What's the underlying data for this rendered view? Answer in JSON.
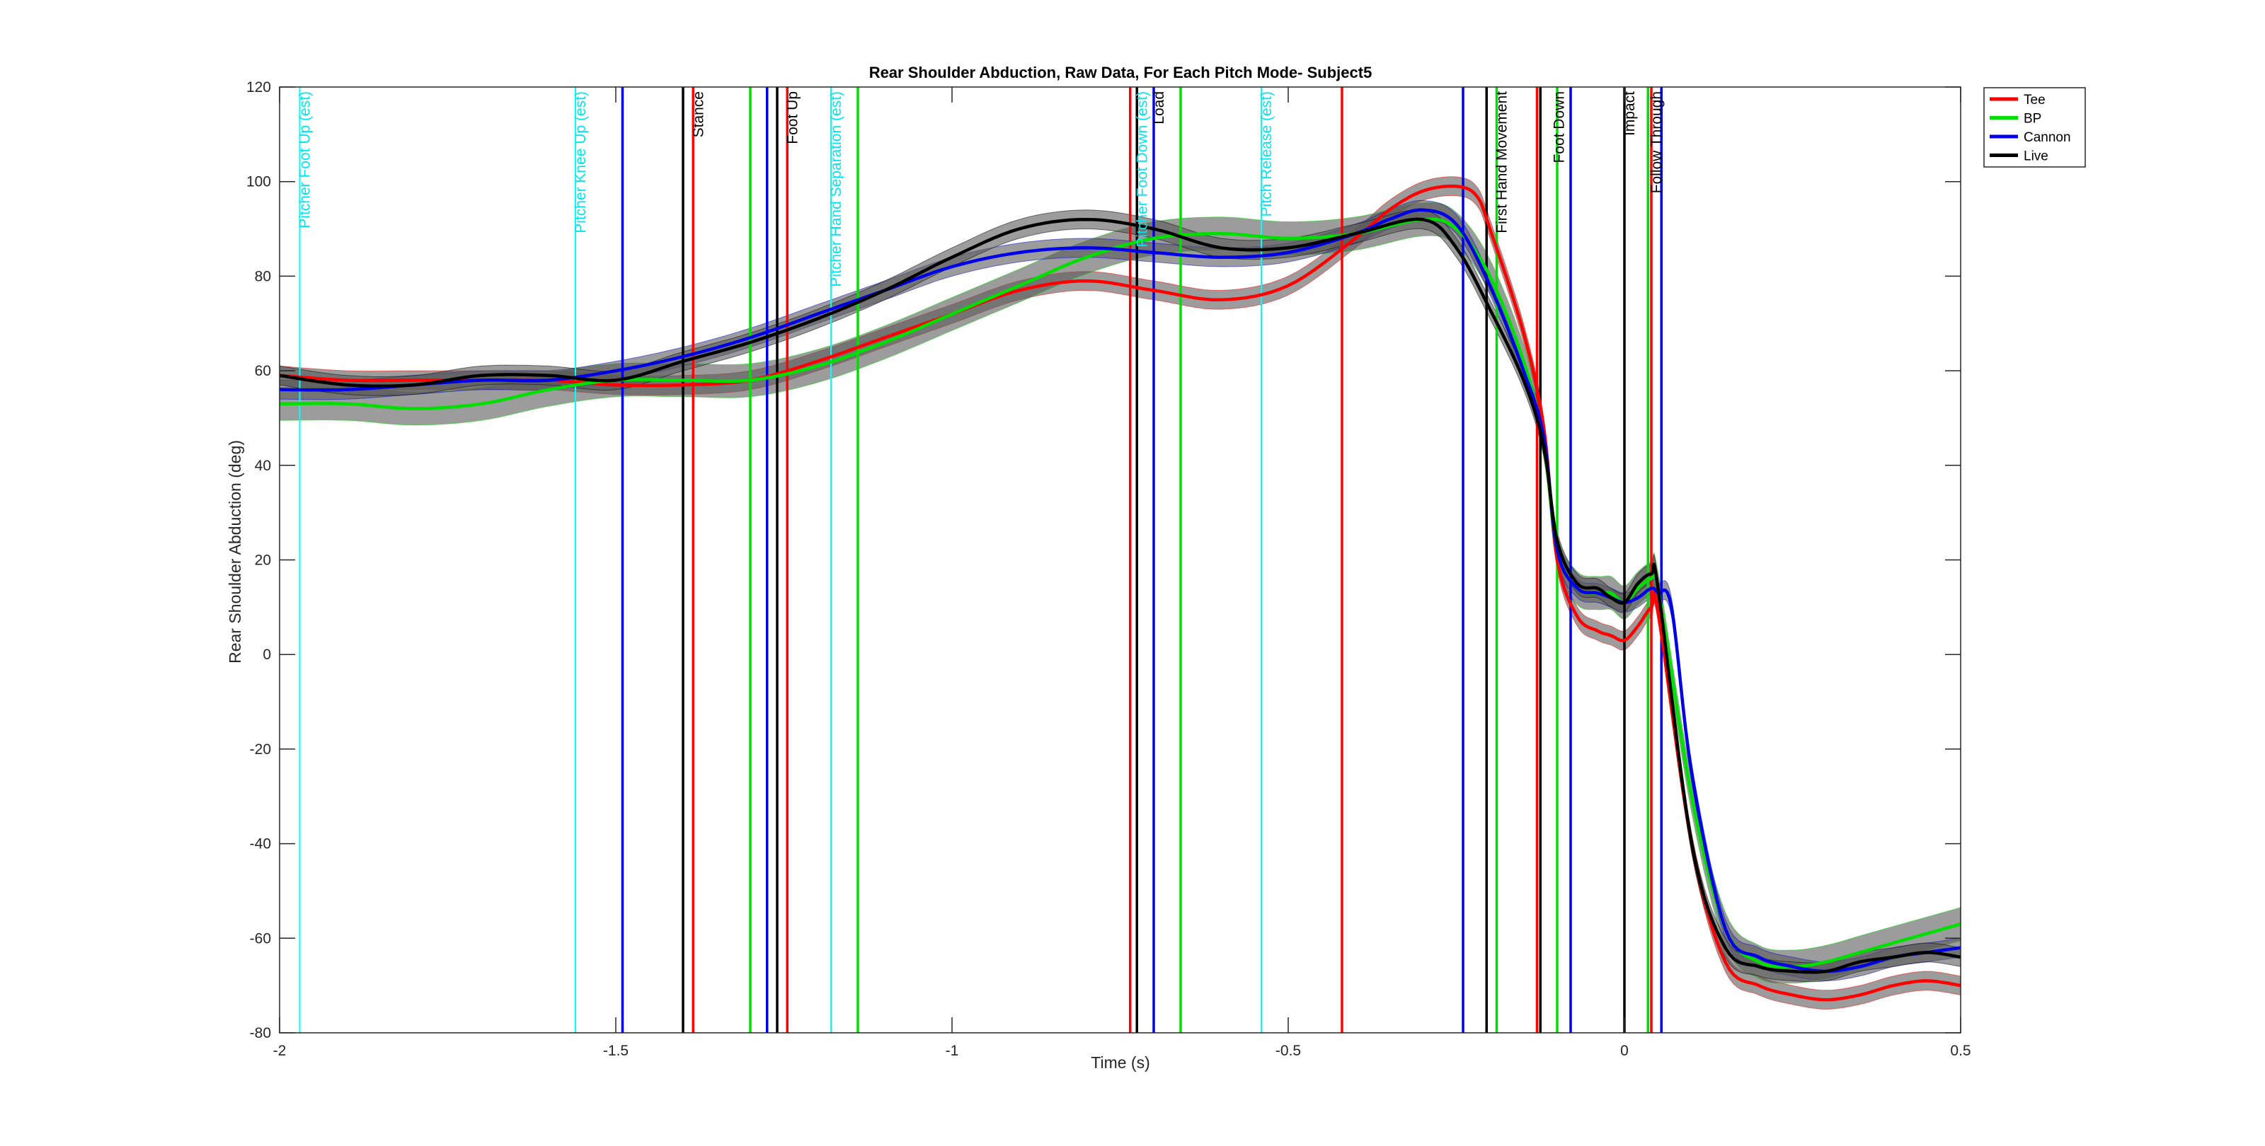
{
  "chart_data": {
    "type": "line",
    "title": "Rear Shoulder Abduction, Raw Data, For Each Pitch Mode- Subject5",
    "xlabel": "Time (s)",
    "ylabel": "Rear Shoulder Abduction (deg)",
    "xlim": [
      -2,
      0.5
    ],
    "ylim": [
      -80,
      120
    ],
    "xticks": [
      -2,
      -1.5,
      -1,
      -0.5,
      0,
      0.5
    ],
    "xtick_labels": [
      "-2",
      "-1.5",
      "-1",
      "-0.5",
      "0",
      "0.5"
    ],
    "yticks": [
      -80,
      -60,
      -40,
      -20,
      0,
      20,
      40,
      60,
      80,
      100,
      120
    ],
    "ytick_labels": [
      "-80",
      "-60",
      "-40",
      "-20",
      "0",
      "20",
      "40",
      "60",
      "80",
      "100",
      "120"
    ],
    "grid": false,
    "legend_position": "top-right",
    "series": [
      {
        "name": "Tee",
        "color": "#ff0000",
        "band": 2.0,
        "x": [
          -2,
          -1.9,
          -1.8,
          -1.7,
          -1.6,
          -1.5,
          -1.4,
          -1.3,
          -1.2,
          -1.1,
          -1.0,
          -0.9,
          -0.8,
          -0.7,
          -0.6,
          -0.5,
          -0.4,
          -0.35,
          -0.3,
          -0.25,
          -0.22,
          -0.2,
          -0.15,
          -0.12,
          -0.1,
          -0.07,
          -0.04,
          -0.02,
          0.0,
          0.02,
          0.04,
          0.05,
          0.1,
          0.15,
          0.2,
          0.25,
          0.3,
          0.35,
          0.4,
          0.45,
          0.5
        ],
        "y": [
          59,
          58,
          58,
          58,
          58,
          57,
          57,
          58,
          62,
          67,
          72,
          77,
          79,
          77,
          75,
          78,
          88,
          94,
          98,
          99,
          97,
          90,
          68,
          48,
          20,
          8,
          5,
          4,
          3,
          6,
          10,
          9,
          -40,
          -65,
          -70,
          -72,
          -73,
          -72,
          -70,
          -69,
          -70
        ]
      },
      {
        "name": "BP",
        "color": "#00e000",
        "band": 3.5,
        "x": [
          -2,
          -1.9,
          -1.8,
          -1.7,
          -1.6,
          -1.5,
          -1.4,
          -1.3,
          -1.2,
          -1.1,
          -1.0,
          -0.9,
          -0.8,
          -0.7,
          -0.6,
          -0.5,
          -0.4,
          -0.3,
          -0.25,
          -0.2,
          -0.15,
          -0.12,
          -0.1,
          -0.07,
          -0.04,
          -0.02,
          0.0,
          0.02,
          0.04,
          0.05,
          0.1,
          0.15,
          0.2,
          0.25,
          0.3,
          0.35,
          0.4,
          0.45,
          0.5
        ],
        "y": [
          53,
          53,
          52,
          53,
          56,
          58,
          58,
          58,
          61,
          66,
          72,
          78,
          84,
          88,
          89,
          88,
          89,
          92,
          90,
          80,
          62,
          45,
          22,
          14,
          13,
          13,
          11,
          14,
          16,
          14,
          -30,
          -58,
          -65,
          -66,
          -65,
          -63,
          -61,
          -59,
          -57
        ]
      },
      {
        "name": "Cannon",
        "color": "#0000e6",
        "band": 2.0,
        "x": [
          -2,
          -1.9,
          -1.8,
          -1.7,
          -1.6,
          -1.5,
          -1.4,
          -1.3,
          -1.2,
          -1.1,
          -1.0,
          -0.9,
          -0.8,
          -0.7,
          -0.6,
          -0.5,
          -0.4,
          -0.35,
          -0.3,
          -0.25,
          -0.2,
          -0.15,
          -0.12,
          -0.1,
          -0.07,
          -0.04,
          -0.02,
          0.0,
          0.02,
          0.04,
          0.05,
          0.07,
          0.1,
          0.15,
          0.2,
          0.25,
          0.3,
          0.35,
          0.4,
          0.45,
          0.5
        ],
        "y": [
          56,
          56,
          57,
          58,
          58,
          60,
          63,
          67,
          72,
          77,
          82,
          85,
          86,
          85,
          84,
          85,
          89,
          92,
          94,
          91,
          78,
          60,
          46,
          22,
          14,
          13,
          12,
          11,
          12,
          14,
          13,
          10,
          -25,
          -58,
          -64,
          -66,
          -67,
          -66,
          -64,
          -63,
          -62
        ]
      },
      {
        "name": "Live",
        "color": "#000000",
        "band": 2.0,
        "x": [
          -2,
          -1.9,
          -1.8,
          -1.7,
          -1.6,
          -1.5,
          -1.4,
          -1.3,
          -1.2,
          -1.1,
          -1.0,
          -0.9,
          -0.8,
          -0.7,
          -0.6,
          -0.5,
          -0.4,
          -0.3,
          -0.25,
          -0.2,
          -0.15,
          -0.12,
          -0.1,
          -0.07,
          -0.04,
          -0.02,
          0.0,
          0.02,
          0.04,
          0.05,
          0.1,
          0.15,
          0.2,
          0.25,
          0.3,
          0.35,
          0.4,
          0.45,
          0.5
        ],
        "y": [
          59,
          57,
          57,
          59,
          59,
          58,
          62,
          66,
          71,
          77,
          84,
          90,
          92,
          90,
          86,
          86,
          89,
          92,
          86,
          73,
          58,
          44,
          24,
          15,
          14,
          12,
          11,
          15,
          17,
          14,
          -40,
          -62,
          -66,
          -67,
          -67,
          -65,
          -64,
          -63,
          -64
        ]
      }
    ],
    "event_lines": [
      {
        "x": -1.97,
        "color": "#00ffff"
      },
      {
        "x": -1.56,
        "color": "#00ffff"
      },
      {
        "x": -1.49,
        "color": "#0000e6"
      },
      {
        "x": -1.4,
        "color": "#000000"
      },
      {
        "x": -1.385,
        "color": "#ff0000"
      },
      {
        "x": -1.3,
        "color": "#00e000"
      },
      {
        "x": -1.275,
        "color": "#0000e6"
      },
      {
        "x": -1.26,
        "color": "#000000"
      },
      {
        "x": -1.245,
        "color": "#ff0000"
      },
      {
        "x": -1.18,
        "color": "#00ffff"
      },
      {
        "x": -1.14,
        "color": "#00e000"
      },
      {
        "x": -0.735,
        "color": "#ff0000"
      },
      {
        "x": -0.725,
        "color": "#000000"
      },
      {
        "x": -0.7,
        "color": "#0000e6"
      },
      {
        "x": -0.66,
        "color": "#00e000"
      },
      {
        "x": -0.54,
        "color": "#00ffff"
      },
      {
        "x": -0.42,
        "color": "#ff0000"
      },
      {
        "x": -0.24,
        "color": "#0000e6"
      },
      {
        "x": -0.205,
        "color": "#000000"
      },
      {
        "x": -0.19,
        "color": "#00e000"
      },
      {
        "x": -0.13,
        "color": "#ff0000"
      },
      {
        "x": -0.125,
        "color": "#000000"
      },
      {
        "x": -0.1,
        "color": "#00e000"
      },
      {
        "x": -0.08,
        "color": "#0000e6"
      },
      {
        "x": 0.0,
        "color": "#000000"
      },
      {
        "x": 0.035,
        "color": "#00e000"
      },
      {
        "x": 0.04,
        "color": "#ff0000"
      },
      {
        "x": 0.055,
        "color": "#0000e6"
      }
    ],
    "annotations": [
      {
        "text": "Pitcher Foot Up (est)",
        "x": -1.97,
        "color": "#00e5ee"
      },
      {
        "text": "Pitcher Knee Up (est)",
        "x": -1.56,
        "color": "#00e5ee"
      },
      {
        "text": "Stance",
        "x": -1.385,
        "color": "#000000"
      },
      {
        "text": "Foot Up",
        "x": -1.245,
        "color": "#000000"
      },
      {
        "text": "Pitcher Hand Separation (est)",
        "x": -1.18,
        "color": "#00e5ee"
      },
      {
        "text": "Pitcher Foot Down (est)",
        "x": -0.725,
        "color": "#00e5ee"
      },
      {
        "text": "Load",
        "x": -0.7,
        "color": "#000000"
      },
      {
        "text": "Pitch Release (est)",
        "x": -0.54,
        "color": "#00e5ee"
      },
      {
        "text": "First Hand Movement",
        "x": -0.19,
        "color": "#000000"
      },
      {
        "text": "Foot Down",
        "x": -0.105,
        "color": "#000000"
      },
      {
        "text": "Impact",
        "x": 0.0,
        "color": "#000000"
      },
      {
        "text": "Follow Through",
        "x": 0.04,
        "color": "#000000"
      }
    ]
  }
}
